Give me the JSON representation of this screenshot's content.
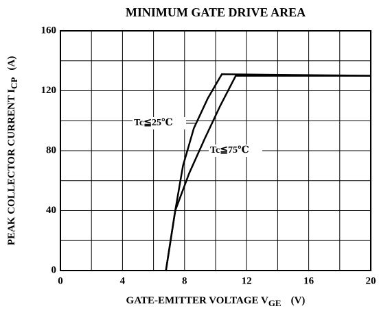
{
  "chart_data": {
    "type": "line",
    "title": "MINIMUM GATE DRIVE AREA",
    "xlabel": {
      "text": "GATE-EMITTER VOLTAGE  V",
      "sub": "GE",
      "unit": "(V)"
    },
    "ylabel": {
      "text": "PEAK COLLECTOR CURRENT  I",
      "sub": "CP",
      "unit": "(A)"
    },
    "xlim": [
      0,
      20
    ],
    "xticks": [
      0,
      4,
      8,
      12,
      16,
      20
    ],
    "xminor": [
      2,
      6,
      10,
      14,
      18
    ],
    "ylim": [
      0,
      160
    ],
    "yticks": [
      0,
      40,
      80,
      120,
      160
    ],
    "yminor": [
      20,
      60,
      100,
      140
    ],
    "grid": true,
    "series": [
      {
        "name": "Tc≦25℃",
        "color": "#000000",
        "x": [
          6.8,
          7.4,
          7.9,
          8.6,
          9.5,
          10.4,
          20
        ],
        "values": [
          0,
          40,
          70,
          95,
          115,
          131,
          130
        ]
      },
      {
        "name": "Tc≦75℃",
        "color": "#000000",
        "x": [
          6.8,
          7.4,
          8.3,
          9.3,
          10.3,
          11.3,
          20
        ],
        "values": [
          0,
          40,
          65,
          88,
          110,
          130,
          130
        ]
      }
    ]
  }
}
